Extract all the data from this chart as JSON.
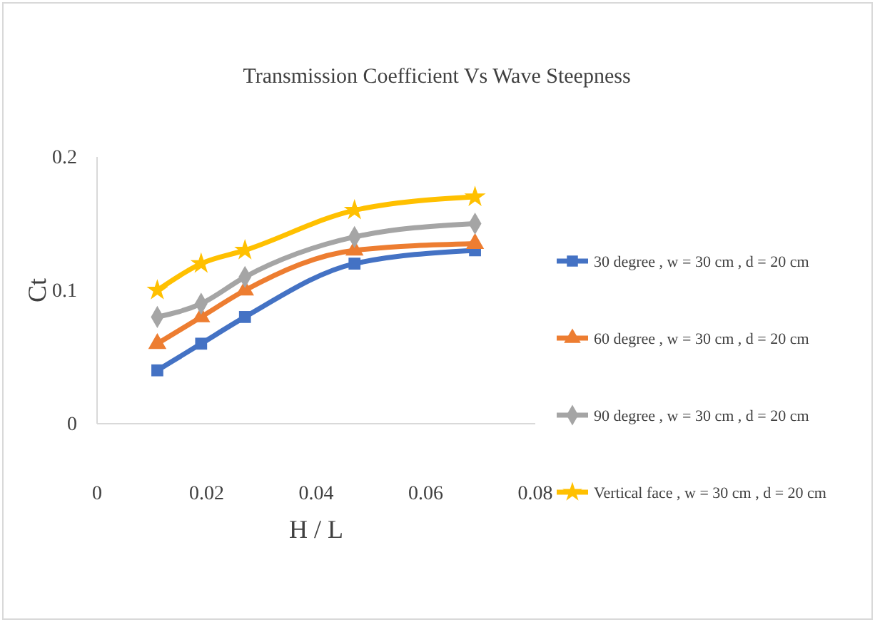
{
  "chart_data": {
    "type": "line",
    "title": "Transmission Coefficient Vs Wave Steepness",
    "xlabel": "H / L",
    "ylabel": "Ct",
    "x": [
      0.011,
      0.019,
      0.027,
      0.047,
      0.069
    ],
    "xlim": [
      0,
      0.08
    ],
    "xticks": [
      0,
      0.02,
      0.04,
      0.06,
      0.08
    ],
    "ylim": [
      0,
      0.2
    ],
    "yticks": [
      0,
      0.1,
      0.2
    ],
    "grid": false,
    "legend": "right",
    "series": [
      {
        "name": "30 degree , w = 30 cm , d = 20 cm",
        "color": "#4472c4",
        "marker": "square",
        "values": [
          0.04,
          0.06,
          0.08,
          0.12,
          0.13
        ]
      },
      {
        "name": "60 degree , w = 30 cm , d = 20 cm",
        "color": "#ed7d31",
        "marker": "triangle",
        "values": [
          0.06,
          0.08,
          0.1,
          0.13,
          0.135
        ]
      },
      {
        "name": "90 degree , w = 30 cm , d = 20 cm",
        "color": "#a5a5a5",
        "marker": "diamond",
        "values": [
          0.08,
          0.09,
          0.11,
          0.14,
          0.15
        ]
      },
      {
        "name": "Vertical face , w = 30 cm , d = 20 cm",
        "color": "#ffc000",
        "marker": "star",
        "values": [
          0.1,
          0.12,
          0.13,
          0.16,
          0.17
        ]
      }
    ]
  }
}
